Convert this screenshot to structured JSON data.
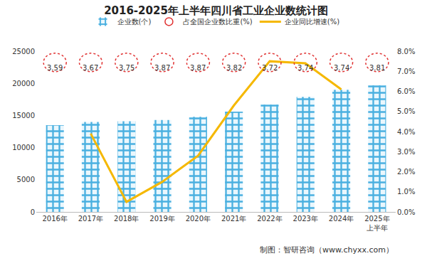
{
  "chart_data": {
    "type": "bar",
    "title": "2016-2025年上半年四川省工业企业数统计图",
    "categories": [
      "2016年",
      "2017年",
      "2018年",
      "2019年",
      "2020年",
      "2021年",
      "2022年",
      "2023年",
      "2024年",
      "2025年\n上半年"
    ],
    "series": [
      {
        "name": "企业数(个)",
        "type": "bar",
        "color": "#4ab0e0",
        "values": [
          13500,
          14000,
          14100,
          14300,
          14800,
          15600,
          16700,
          17900,
          19000,
          19700
        ]
      },
      {
        "name": "占全国企业数比重(%)",
        "type": "scatter",
        "marker": "circle",
        "line_style": "dotted",
        "color": "#e03030",
        "data_labels": true,
        "values": [
          3.59,
          3.67,
          3.75,
          3.87,
          3.87,
          3.82,
          3.72,
          3.74,
          3.74,
          3.81
        ]
      },
      {
        "name": "企业同比增速(%)",
        "type": "line",
        "color": "#f5b800",
        "axis": "y2",
        "values": [
          null,
          3.9,
          0.5,
          1.5,
          2.8,
          5.3,
          7.5,
          7.4,
          6.1,
          null
        ]
      }
    ],
    "ylim": [
      0,
      25000
    ],
    "yticks": [
      0,
      5000,
      10000,
      15000,
      20000,
      25000
    ],
    "y2lim": [
      0,
      8
    ],
    "y2ticks": [
      {
        "value": 0,
        "label": "0.0%"
      },
      {
        "value": 1,
        "label": "1.0%"
      },
      {
        "value": 2,
        "label": "2.0%"
      },
      {
        "value": 3,
        "label": "3.0%"
      },
      {
        "value": 4,
        "label": "4.0%"
      },
      {
        "value": 5,
        "label": "5.0%"
      },
      {
        "value": 6,
        "label": "6.0%"
      },
      {
        "value": 7,
        "label": "7.0%"
      },
      {
        "value": 8,
        "label": "8.0%"
      }
    ],
    "grid": false,
    "legend": "top",
    "source": "制图：智研咨询（www.chyxx.com）"
  }
}
